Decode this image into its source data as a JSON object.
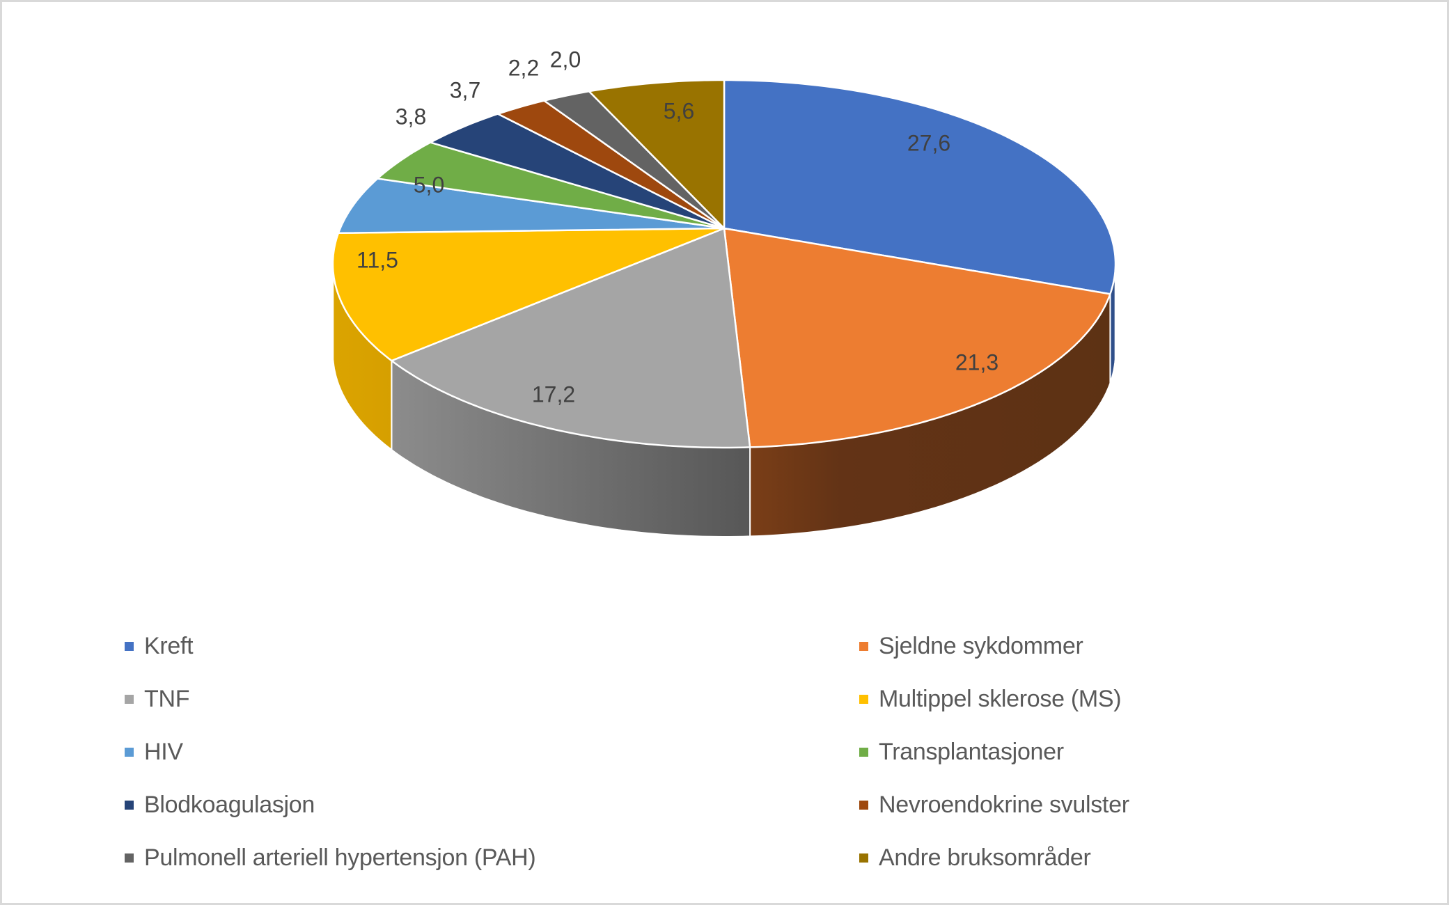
{
  "chart_data": {
    "type": "pie",
    "variant": "3d-pie",
    "title": "",
    "legend_position": "bottom",
    "categories": [
      "Kreft",
      "Sjeldne sykdommer",
      "TNF",
      "Multippel sklerose (MS)",
      "HIV",
      "Transplantasjoner",
      "Blodkoagulasjon",
      "Nevroendokrine svulster",
      "Pulmonell arteriell hypertensjon (PAH)",
      "Andre bruksområder"
    ],
    "values": [
      27.6,
      21.3,
      17.2,
      11.5,
      5.0,
      3.8,
      3.7,
      2.2,
      2.0,
      5.6
    ],
    "data_labels": [
      "27,6",
      "21,3",
      "17,2",
      "11,5",
      "5,0",
      "3,8",
      "3,7",
      "2,2",
      "2,0",
      "5,6"
    ],
    "colors": [
      "#4472c4",
      "#ed7d31",
      "#a5a5a5",
      "#ffc000",
      "#5b9bd5",
      "#70ad47",
      "#264478",
      "#9e480e",
      "#636363",
      "#997300"
    ],
    "side_colors": [
      "#2f4f8a",
      "#613214",
      "#5a5a5a",
      "#d8a300",
      "#3f6f9c",
      "#4c7a30",
      "#152a4c",
      "#6a300a",
      "#404040",
      "#6a5000"
    ]
  },
  "legend": {
    "items": [
      {
        "label": "Kreft",
        "color": "#4472c4"
      },
      {
        "label": "Sjeldne sykdommer",
        "color": "#ed7d31"
      },
      {
        "label": "TNF",
        "color": "#a5a5a5"
      },
      {
        "label": "Multippel sklerose (MS)",
        "color": "#ffc000"
      },
      {
        "label": "HIV",
        "color": "#5b9bd5"
      },
      {
        "label": "Transplantasjoner",
        "color": "#70ad47"
      },
      {
        "label": "Blodkoagulasjon",
        "color": "#264478"
      },
      {
        "label": "Nevroendokrine svulster",
        "color": "#9e480e"
      },
      {
        "label": "Pulmonell arteriell hypertensjon (PAH)",
        "color": "#636363"
      },
      {
        "label": "Andre bruksområder",
        "color": "#997300"
      }
    ]
  }
}
